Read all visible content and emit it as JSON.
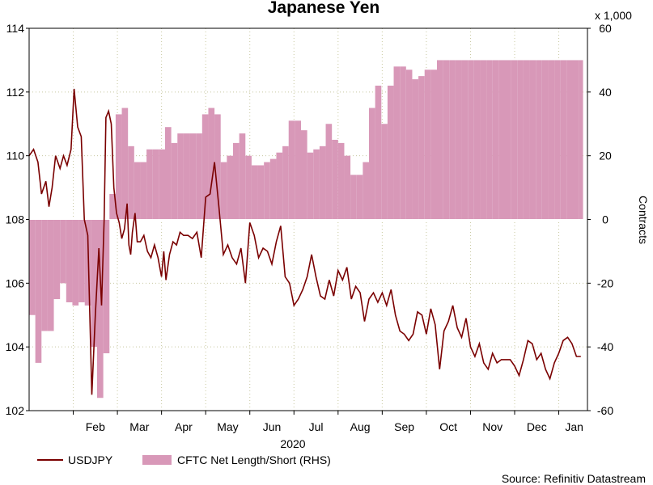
{
  "chart_data": {
    "type": "line+bar",
    "title": "Japanese Yen",
    "xlabel": "2020",
    "source": "Source: Refinitiv Datastream",
    "scale_note": "x 1,000",
    "y_left": {
      "min": 102,
      "max": 114,
      "ticks": [
        102,
        104,
        106,
        108,
        110,
        112,
        114
      ]
    },
    "y_right": {
      "label": "Contracts",
      "min": -60,
      "max": 60,
      "ticks": [
        -60,
        -40,
        -20,
        0,
        20,
        40,
        60
      ]
    },
    "x_range": [
      0,
      12.65
    ],
    "months": [
      {
        "label": "Feb",
        "pos": 1.5
      },
      {
        "label": "Mar",
        "pos": 2.5
      },
      {
        "label": "Apr",
        "pos": 3.5
      },
      {
        "label": "May",
        "pos": 4.5
      },
      {
        "label": "Jun",
        "pos": 5.5
      },
      {
        "label": "Jul",
        "pos": 6.5
      },
      {
        "label": "Aug",
        "pos": 7.5
      },
      {
        "label": "Sep",
        "pos": 8.5
      },
      {
        "label": "Oct",
        "pos": 9.5
      },
      {
        "label": "Nov",
        "pos": 10.5
      },
      {
        "label": "Dec",
        "pos": 11.5
      },
      {
        "label": "Jan",
        "pos": 12.35
      }
    ],
    "legend": {
      "line_label": "USDJPY",
      "area_label": "CFTC Net Length/Short (RHS)"
    },
    "colors": {
      "line": "#7a0000",
      "area": "#d898b8",
      "grid": "#c8c8a0"
    },
    "series": [
      {
        "name": "CFTC Net Length/Short (RHS)",
        "kind": "weekly-bars",
        "week_starts": [
          0.0,
          0.14,
          0.28,
          0.42,
          0.56,
          0.7,
          0.84,
          0.98,
          1.12,
          1.26,
          1.4,
          1.54,
          1.68,
          1.82,
          1.96,
          2.1,
          2.24,
          2.38,
          2.52,
          2.66,
          2.8,
          2.94,
          3.08,
          3.22,
          3.36,
          3.5,
          3.64,
          3.78,
          3.92,
          4.06,
          4.2,
          4.34,
          4.48,
          4.62,
          4.76,
          4.9,
          5.04,
          5.18,
          5.32,
          5.46,
          5.6,
          5.74,
          5.88,
          6.02,
          6.16,
          6.3,
          6.44,
          6.58,
          6.72,
          6.86,
          7.0,
          7.14,
          7.28,
          7.42,
          7.56,
          7.7,
          7.84,
          7.98,
          8.12,
          8.26,
          8.4,
          8.54,
          8.68,
          8.82,
          8.96,
          9.1,
          9.24,
          9.38,
          9.52,
          9.66,
          9.8,
          9.94,
          10.08,
          10.22,
          10.36,
          10.5,
          10.64,
          10.78,
          10.92,
          11.06,
          11.2,
          11.34,
          11.48,
          11.62,
          11.76,
          11.9,
          12.04,
          12.18,
          12.32,
          12.46
        ],
        "values": [
          -30,
          -45,
          -35,
          -35,
          -25,
          -20,
          -26,
          -27,
          -26,
          -27,
          -40,
          -56,
          -42,
          8,
          33,
          35,
          23,
          18,
          18,
          22,
          22,
          22,
          29,
          24,
          27,
          27,
          27,
          27,
          33,
          35,
          33,
          18,
          20,
          24,
          27,
          20,
          17,
          17,
          18,
          19,
          21,
          23,
          31,
          31,
          28,
          21,
          22,
          23,
          30,
          25,
          24,
          20,
          14,
          14,
          18,
          35,
          42,
          30,
          42,
          48,
          48,
          47,
          44,
          45,
          47,
          47,
          50,
          50,
          50,
          50,
          50,
          50,
          50,
          50,
          50,
          50,
          50,
          50,
          50,
          50,
          50,
          50,
          50,
          50,
          50,
          50,
          50,
          50,
          50,
          50
        ]
      },
      {
        "name": "USDJPY",
        "kind": "line",
        "x": [
          0.0,
          0.1,
          0.2,
          0.28,
          0.38,
          0.45,
          0.52,
          0.6,
          0.7,
          0.78,
          0.86,
          0.95,
          1.02,
          1.1,
          1.18,
          1.25,
          1.33,
          1.42,
          1.5,
          1.58,
          1.64,
          1.7,
          1.74,
          1.8,
          1.86,
          1.92,
          1.98,
          2.04,
          2.1,
          2.16,
          2.22,
          2.26,
          2.3,
          2.34,
          2.4,
          2.45,
          2.52,
          2.6,
          2.68,
          2.76,
          2.84,
          2.92,
          3.0,
          3.05,
          3.1,
          3.18,
          3.26,
          3.34,
          3.42,
          3.5,
          3.6,
          3.7,
          3.8,
          3.9,
          4.0,
          4.1,
          4.2,
          4.3,
          4.4,
          4.5,
          4.6,
          4.7,
          4.8,
          4.9,
          5.0,
          5.1,
          5.2,
          5.3,
          5.4,
          5.5,
          5.6,
          5.7,
          5.8,
          5.9,
          6.0,
          6.1,
          6.2,
          6.3,
          6.4,
          6.5,
          6.6,
          6.7,
          6.8,
          6.9,
          7.0,
          7.1,
          7.2,
          7.3,
          7.4,
          7.5,
          7.6,
          7.7,
          7.8,
          7.9,
          8.0,
          8.1,
          8.2,
          8.3,
          8.4,
          8.5,
          8.6,
          8.7,
          8.8,
          8.9,
          9.0,
          9.1,
          9.2,
          9.3,
          9.4,
          9.5,
          9.6,
          9.7,
          9.8,
          9.9,
          10.0,
          10.1,
          10.2,
          10.3,
          10.4,
          10.5,
          10.6,
          10.7,
          10.8,
          10.9,
          11.0,
          11.1,
          11.2,
          11.3,
          11.4,
          11.5,
          11.6,
          11.7,
          11.8,
          11.9,
          12.0,
          12.1,
          12.2,
          12.3,
          12.4,
          12.5
        ],
        "values": [
          110.0,
          110.2,
          109.8,
          108.8,
          109.2,
          108.4,
          109.0,
          110.0,
          109.6,
          110.0,
          109.7,
          110.2,
          112.1,
          110.9,
          110.6,
          108.0,
          107.5,
          102.5,
          105.0,
          107.1,
          105.3,
          108.0,
          111.2,
          111.4,
          111.0,
          109.0,
          108.2,
          107.9,
          107.4,
          107.7,
          108.5,
          107.2,
          106.9,
          107.6,
          108.2,
          107.3,
          107.3,
          107.5,
          107.0,
          106.8,
          107.2,
          106.8,
          106.2,
          107.0,
          106.1,
          106.9,
          107.3,
          107.2,
          107.6,
          107.5,
          107.5,
          107.4,
          107.6,
          106.8,
          108.7,
          108.8,
          109.8,
          108.4,
          106.9,
          107.2,
          106.8,
          106.6,
          107.1,
          106.0,
          107.9,
          107.5,
          106.8,
          107.1,
          107.0,
          106.6,
          107.3,
          107.8,
          106.2,
          106.0,
          105.3,
          105.5,
          105.8,
          106.2,
          106.9,
          106.2,
          105.6,
          105.5,
          106.1,
          105.6,
          106.4,
          106.1,
          106.5,
          105.5,
          105.9,
          105.7,
          104.8,
          105.5,
          105.7,
          105.4,
          105.7,
          105.3,
          105.8,
          105.0,
          104.5,
          104.4,
          104.2,
          104.4,
          105.1,
          105.0,
          104.4,
          105.2,
          104.7,
          103.3,
          104.5,
          104.8,
          105.3,
          104.6,
          104.3,
          104.9,
          104.0,
          103.7,
          104.1,
          103.5,
          103.3,
          103.8,
          103.5,
          103.6,
          103.6,
          103.6,
          103.4,
          103.1,
          103.6,
          104.2,
          104.1,
          103.6,
          103.8,
          103.3,
          103.0,
          103.5,
          103.8,
          104.2,
          104.3,
          104.1,
          103.7,
          103.7
        ]
      }
    ]
  }
}
